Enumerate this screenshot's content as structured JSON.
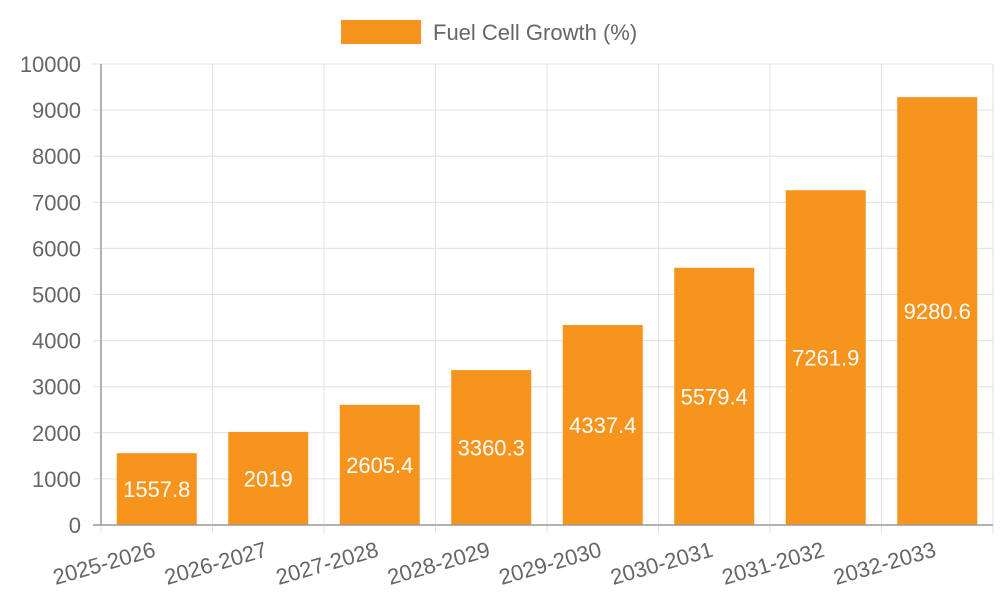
{
  "chart_data": {
    "type": "bar",
    "categories": [
      "2025-2026",
      "2026-2027",
      "2027-2028",
      "2028-2029",
      "2029-2030",
      "2030-2031",
      "2031-2032",
      "2032-2033"
    ],
    "series": [
      {
        "name": "Fuel Cell Growth (%)",
        "values": [
          1557.8,
          2019,
          2605.4,
          3360.3,
          4337.4,
          5579.4,
          7261.9,
          9280.6
        ],
        "color": "#f7941d"
      }
    ],
    "ylim": [
      0,
      10000
    ],
    "yticks": [
      0,
      1000,
      2000,
      3000,
      4000,
      5000,
      6000,
      7000,
      8000,
      9000,
      10000
    ],
    "grid": true,
    "legend_position": "top-center",
    "data_labels": [
      "1557.8",
      "2019",
      "2605.4",
      "3360.3",
      "4337.4",
      "5579.4",
      "7261.9",
      "9280.6"
    ]
  }
}
